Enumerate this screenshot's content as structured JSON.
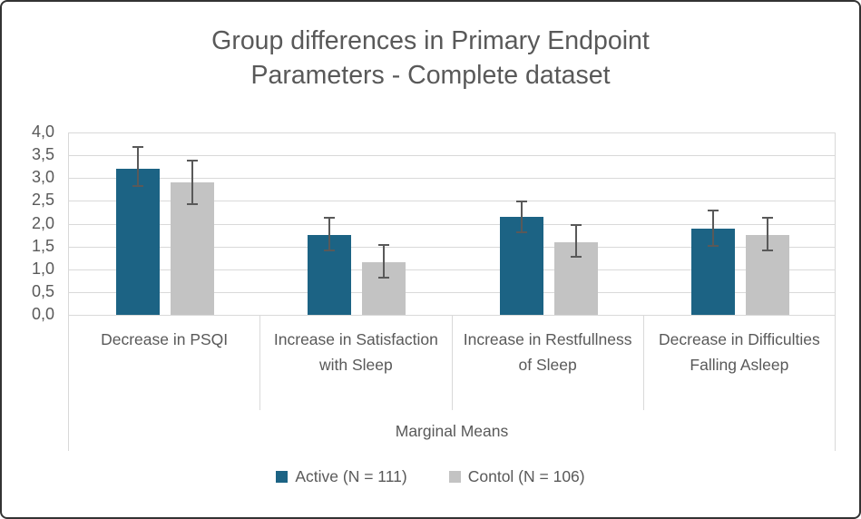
{
  "chart_data": {
    "type": "bar",
    "title": "Group differences in Primary Endpoint Parameters - Complete dataset",
    "xlabel": "Marginal Means",
    "ylabel": "",
    "ylim": [
      0,
      4
    ],
    "ytick_step": 0.5,
    "ytick_labels_top_to_bottom": [
      "4,0",
      "3,5",
      "3,0",
      "2,5",
      "2,0",
      "1,5",
      "1,0",
      "0,5",
      "0,0"
    ],
    "decimal_separator": ",",
    "grid": true,
    "legend_position": "bottom",
    "categories": [
      "Decrease in PSQI",
      "Increase in Satisfaction with Sleep",
      "Increase in Restfullness of Sleep",
      "Decrease in Difficulties Falling Asleep"
    ],
    "series": [
      {
        "name": "Active (N = 111)",
        "color": "#1C6384",
        "values": [
          3.2,
          1.75,
          2.15,
          1.9
        ],
        "error_low": [
          2.8,
          1.4,
          1.8,
          1.5
        ],
        "error_high": [
          3.7,
          2.15,
          2.5,
          2.3
        ]
      },
      {
        "name": "Contol (N = 106)",
        "color": "#C3C3C3",
        "values": [
          2.9,
          1.15,
          1.6,
          1.75
        ],
        "error_low": [
          2.4,
          0.8,
          1.25,
          1.4
        ],
        "error_high": [
          3.4,
          1.55,
          2.0,
          2.15
        ]
      }
    ],
    "error_bar_color": "#595959"
  },
  "style_colors": {
    "text": "#595959",
    "gridline": "#D9D9D9",
    "figure_border": "#333333",
    "background": "#FFFFFF"
  }
}
